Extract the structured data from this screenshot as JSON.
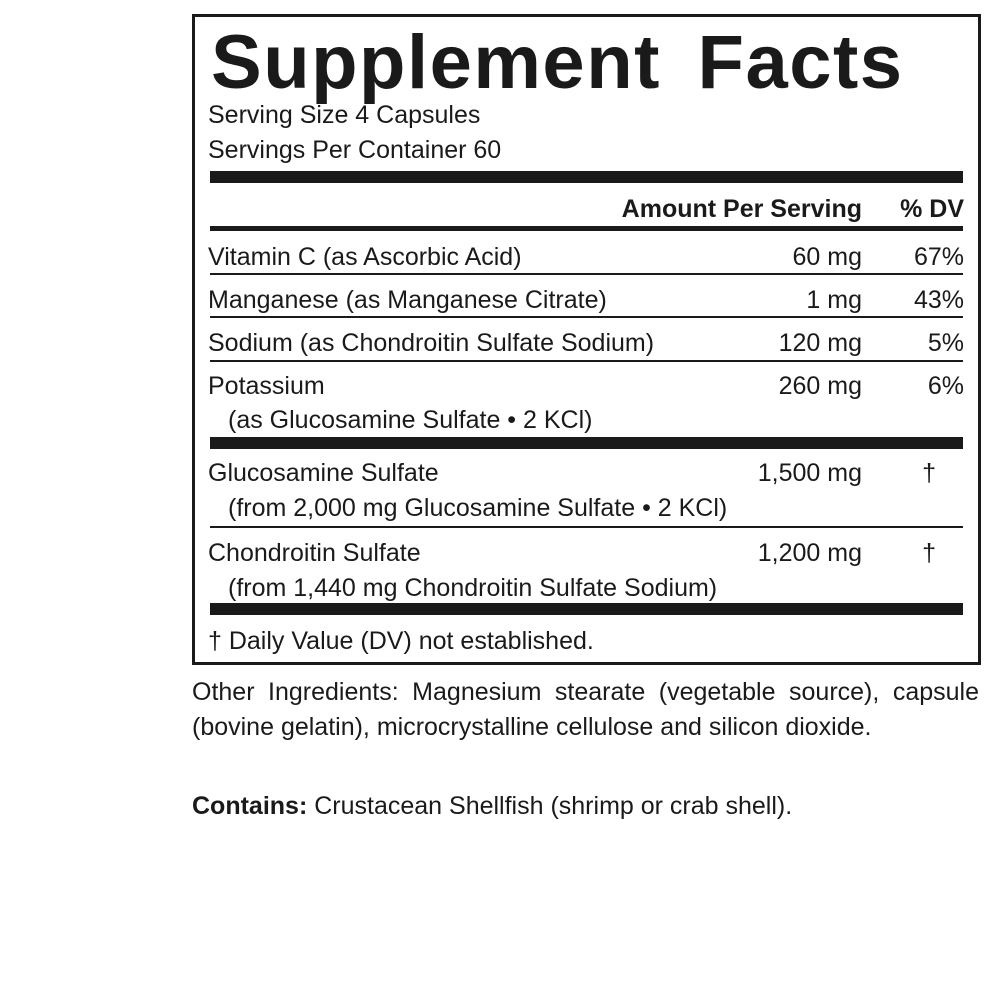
{
  "title": "Supplement Facts",
  "serving_size": "Serving Size 4 Capsules",
  "servings_per_container": "Servings Per Container 60",
  "header": {
    "amount": "Amount Per Serving",
    "dv": "% DV"
  },
  "nutrients": [
    {
      "name": "Vitamin C (as Ascorbic Acid)",
      "amount": "60 mg",
      "dv": "67%"
    },
    {
      "name": "Manganese (as Manganese Citrate)",
      "amount": "1 mg",
      "dv": "43%"
    },
    {
      "name": "Sodium (as Chondroitin Sulfate Sodium)",
      "amount": "120 mg",
      "dv": "5%"
    },
    {
      "name": "Potassium",
      "sub": "(as Glucosamine Sulfate • 2 KCl)",
      "amount": "260 mg",
      "dv": "6%"
    }
  ],
  "others": [
    {
      "name": "Glucosamine Sulfate",
      "sub": "(from 2,000 mg Glucosamine Sulfate • 2 KCl)",
      "amount": "1,500 mg",
      "dv": "†"
    },
    {
      "name": "Chondroitin Sulfate",
      "sub": "(from 1,440 mg Chondroitin Sulfate Sodium)",
      "amount": "1,200 mg",
      "dv": "†"
    }
  ],
  "footnote": "† Daily Value (DV) not established.",
  "other_ingredients": "Other Ingredients: Magnesium stearate (vegetable source), capsule (bovine gelatin), microcrystalline cellulose and silicon dioxide.",
  "contains_label": "Contains:",
  "contains_text": " Crustacean Shellfish (shrimp or crab shell)."
}
